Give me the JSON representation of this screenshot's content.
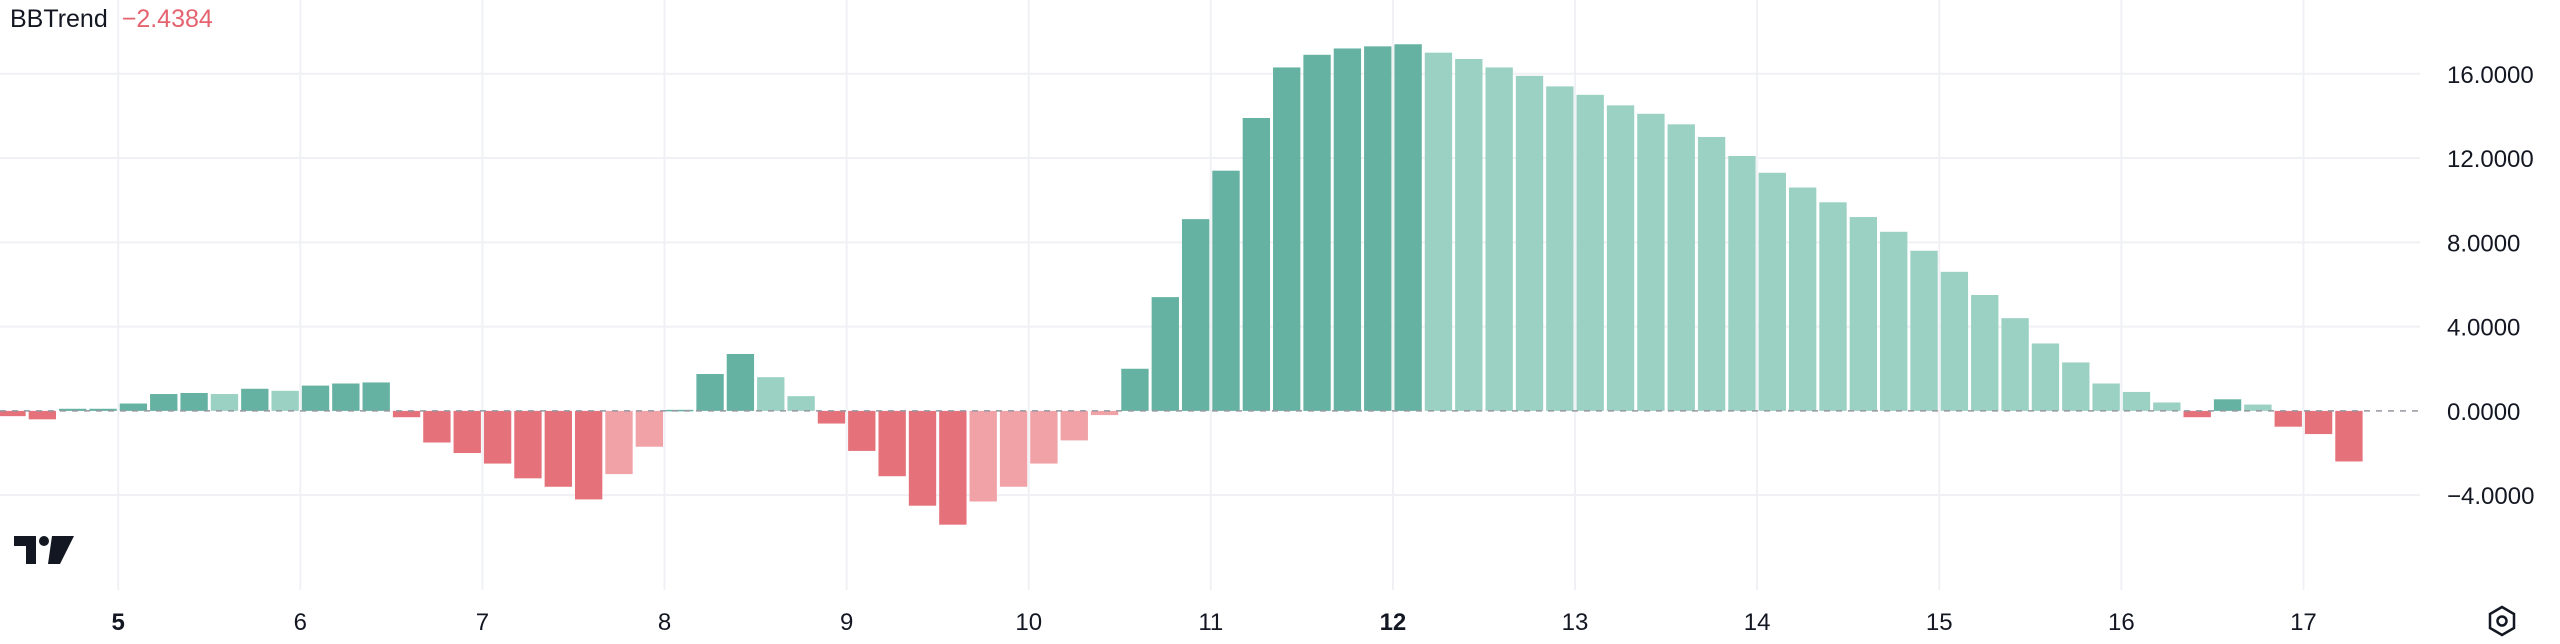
{
  "chart_data": {
    "type": "bar",
    "title": "BBTrend",
    "current_value_text": "−2.4384",
    "y_ticks": [
      16,
      12,
      8,
      4,
      0,
      -4
    ],
    "y_tick_labels": [
      "16.0000",
      "12.0000",
      "8.0000",
      "4.0000",
      "0.0000",
      "−4.0000"
    ],
    "ylim": [
      -8.5,
      19.5
    ],
    "x_ticks": [
      {
        "label": "5",
        "bold": true,
        "index": 3.5
      },
      {
        "label": "6",
        "bold": false,
        "index": 9.5
      },
      {
        "label": "7",
        "bold": false,
        "index": 15.5
      },
      {
        "label": "8",
        "bold": false,
        "index": 21.5
      },
      {
        "label": "9",
        "bold": false,
        "index": 27.5
      },
      {
        "label": "10",
        "bold": false,
        "index": 33.5
      },
      {
        "label": "11",
        "bold": false,
        "index": 39.5
      },
      {
        "label": "12",
        "bold": true,
        "index": 45.5
      },
      {
        "label": "13",
        "bold": false,
        "index": 51.5
      },
      {
        "label": "14",
        "bold": false,
        "index": 57.5
      },
      {
        "label": "15",
        "bold": false,
        "index": 63.5
      },
      {
        "label": "16",
        "bold": false,
        "index": 69.5
      },
      {
        "label": "17",
        "bold": false,
        "index": 75.5
      }
    ],
    "values": [
      -0.25,
      -0.4,
      0.1,
      0.1,
      0.35,
      0.8,
      0.85,
      0.8,
      1.05,
      0.95,
      1.2,
      1.3,
      1.35,
      -0.3,
      -1.5,
      -2.0,
      -2.5,
      -3.2,
      -3.6,
      -4.2,
      -3.0,
      -1.7,
      0.05,
      1.75,
      2.7,
      1.6,
      0.7,
      -0.6,
      -1.9,
      -3.1,
      -4.5,
      -5.4,
      -4.3,
      -3.6,
      -2.5,
      -1.4,
      -0.2,
      2.0,
      5.4,
      9.1,
      11.4,
      13.9,
      16.3,
      16.9,
      17.2,
      17.3,
      17.4,
      17.0,
      16.7,
      16.3,
      15.9,
      15.4,
      15.0,
      14.5,
      14.1,
      13.6,
      13.0,
      12.1,
      11.3,
      10.6,
      9.9,
      9.2,
      8.5,
      7.6,
      6.6,
      5.5,
      4.4,
      3.2,
      2.3,
      1.3,
      0.9,
      0.4,
      -0.3,
      0.55,
      0.3,
      -0.75,
      -1.1,
      -2.4
    ],
    "colors": {
      "positive_strong": "#66b2a2",
      "positive_weak": "#9bd1c3",
      "negative_strong": "#e5717a",
      "negative_weak": "#f0a2a7",
      "grid": "#f0f1f4",
      "axis_text": "#131722",
      "zero_line": "#9598a1"
    }
  }
}
